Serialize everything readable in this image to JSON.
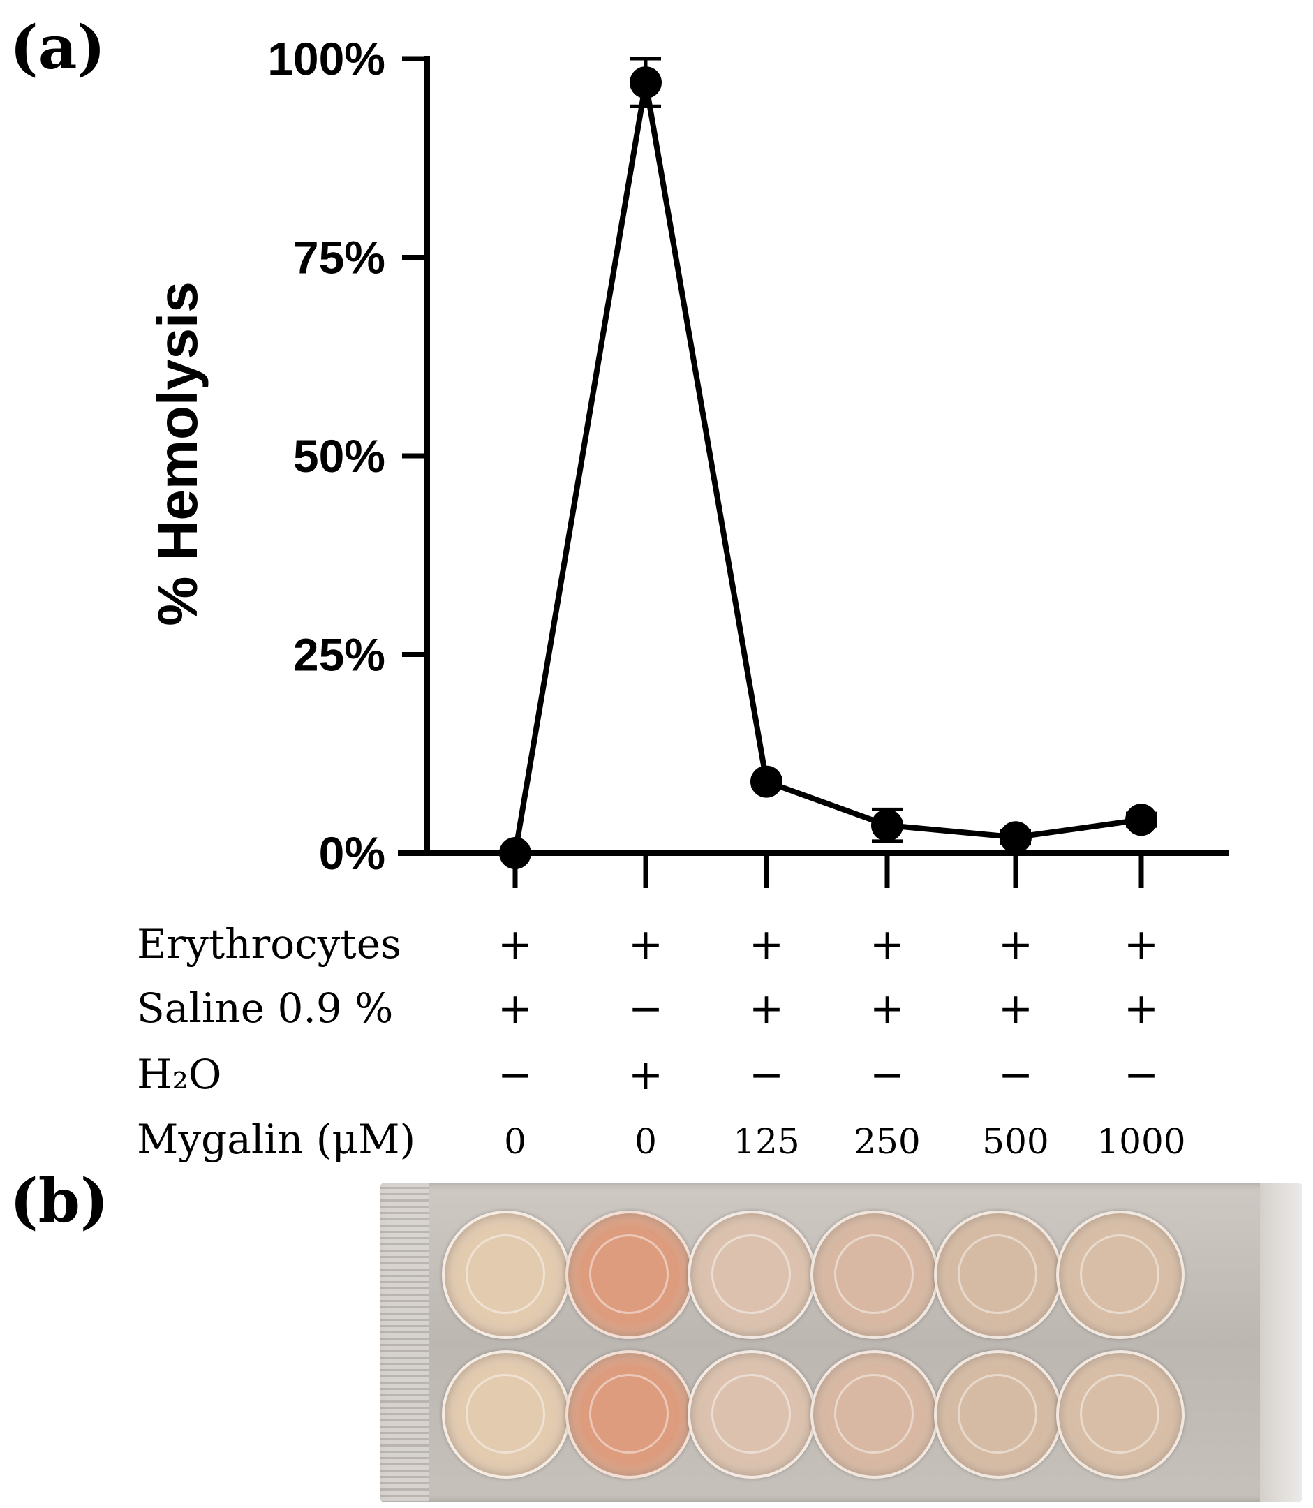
{
  "panels": {
    "a": "(a)",
    "b": "(b)"
  },
  "chart_data": {
    "type": "line",
    "title": "",
    "ylabel": "% Hemolysis",
    "xlabel": "",
    "ylim": [
      0,
      100
    ],
    "yticks": [
      0,
      25,
      50,
      75,
      100
    ],
    "ytick_labels": [
      "0%",
      "25%",
      "50%",
      "75%",
      "100%"
    ],
    "series": [
      {
        "name": "Hemolysis",
        "values": [
          0,
          97,
          9,
          3.5,
          2,
          4.2
        ],
        "errors": [
          0,
          3,
          0.5,
          2,
          0.8,
          0.8
        ]
      }
    ]
  },
  "table": {
    "rows": [
      {
        "label": "Erythrocytes",
        "cells": [
          "+",
          "+",
          "+",
          "+",
          "+",
          "+"
        ]
      },
      {
        "label": "Saline 0.9 %",
        "cells": [
          "+",
          "−",
          "+",
          "+",
          "+",
          "+"
        ]
      },
      {
        "label": "H₂O",
        "cells": [
          "−",
          "+",
          "−",
          "−",
          "−",
          "−"
        ]
      },
      {
        "label": "Mygalin (μM)",
        "cells": [
          "0",
          "0",
          "125",
          "250",
          "500",
          "1000"
        ]
      }
    ]
  },
  "plate": {
    "colors": [
      "#e3cbb0",
      "#dd9c7e",
      "#dcc2ae",
      "#d8b8a2",
      "#d6bba4",
      "#d8bea6"
    ]
  }
}
